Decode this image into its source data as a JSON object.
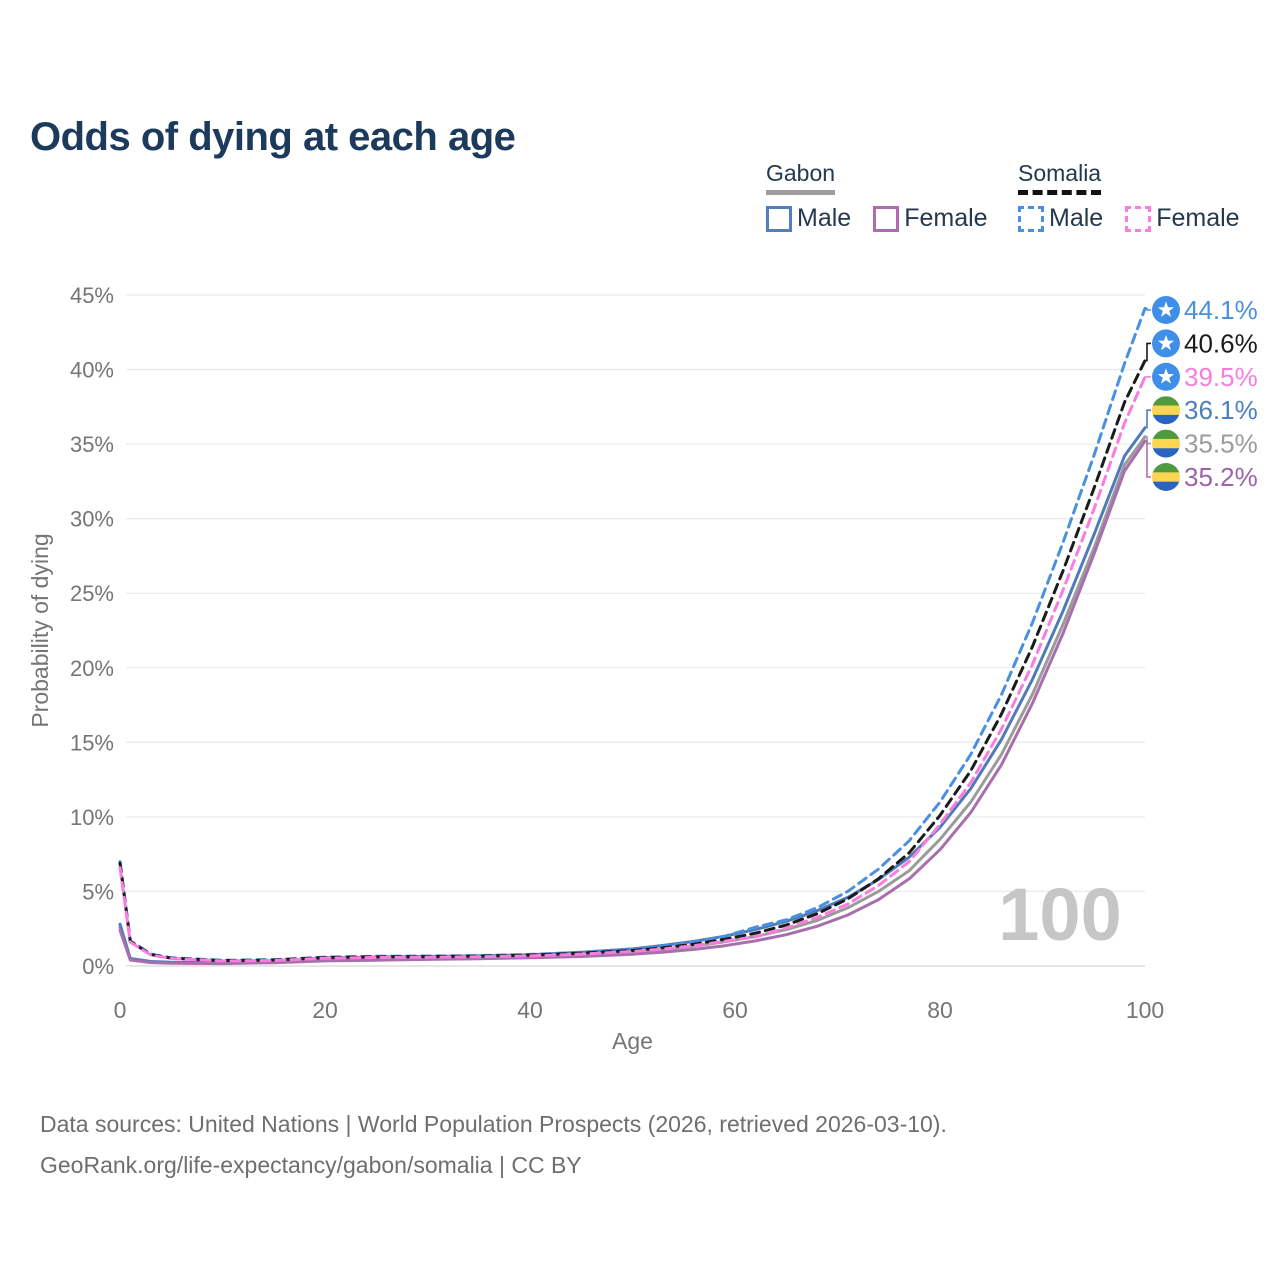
{
  "title": "Odds of dying at each age",
  "legend": {
    "groups": [
      {
        "country": "Gabon",
        "line_style": "solid",
        "underline_color": "#9e9e9e",
        "items": [
          {
            "label": "Male",
            "color": "#5280bd",
            "style": "solid"
          },
          {
            "label": "Female",
            "color": "#b06aad",
            "style": "solid"
          }
        ]
      },
      {
        "country": "Somalia",
        "line_style": "dashed",
        "underline_color": "#111111",
        "items": [
          {
            "label": "Male",
            "color": "#4a90e2",
            "style": "dashed"
          },
          {
            "label": "Female",
            "color": "#fb7de2",
            "style": "dashed"
          }
        ]
      }
    ]
  },
  "chart_data": {
    "type": "line",
    "title": "Odds of dying at each age",
    "xlabel": "Age",
    "ylabel": "Probability of dying",
    "xlim": [
      0,
      100
    ],
    "ylim": [
      0,
      45
    ],
    "grid": "horizontal-only",
    "watermark": "100",
    "xticks": [
      {
        "value": 0,
        "label": "0"
      },
      {
        "value": 20,
        "label": "20"
      },
      {
        "value": 40,
        "label": "40"
      },
      {
        "value": 60,
        "label": "60"
      },
      {
        "value": 80,
        "label": "80"
      },
      {
        "value": 100,
        "label": "100"
      }
    ],
    "yticks": [
      {
        "value": 0,
        "label": "0%"
      },
      {
        "value": 5,
        "label": "5%"
      },
      {
        "value": 10,
        "label": "10%"
      },
      {
        "value": 15,
        "label": "15%"
      },
      {
        "value": 20,
        "label": "20%"
      },
      {
        "value": 25,
        "label": "25%"
      },
      {
        "value": 30,
        "label": "30%"
      },
      {
        "value": 35,
        "label": "35%"
      },
      {
        "value": 40,
        "label": "40%"
      },
      {
        "value": 45,
        "label": "45%"
      }
    ],
    "series": [
      {
        "id": "gabon-both",
        "name": "Gabon — Both sexes",
        "country": "Gabon",
        "sex": "Both",
        "color": "#9b9b9b",
        "dash": false,
        "flag": "gabon",
        "end_label": "35.5%",
        "end_value": 35.5,
        "label_color": "#9b9b9b",
        "points": [
          [
            0,
            2.6
          ],
          [
            1,
            0.46
          ],
          [
            3,
            0.27
          ],
          [
            5,
            0.22
          ],
          [
            10,
            0.19
          ],
          [
            15,
            0.28
          ],
          [
            20,
            0.43
          ],
          [
            25,
            0.49
          ],
          [
            30,
            0.54
          ],
          [
            35,
            0.6
          ],
          [
            40,
            0.66
          ],
          [
            45,
            0.78
          ],
          [
            50,
            0.96
          ],
          [
            53,
            1.12
          ],
          [
            56,
            1.33
          ],
          [
            59,
            1.62
          ],
          [
            62,
            1.98
          ],
          [
            65,
            2.45
          ],
          [
            68,
            3.05
          ],
          [
            71,
            3.9
          ],
          [
            74,
            5.0
          ],
          [
            77,
            6.4
          ],
          [
            80,
            8.5
          ],
          [
            83,
            11.0
          ],
          [
            86,
            14.2
          ],
          [
            89,
            18.2
          ],
          [
            92,
            22.9
          ],
          [
            95,
            28.0
          ],
          [
            98,
            33.6
          ],
          [
            100,
            35.5
          ]
        ]
      },
      {
        "id": "gabon-male",
        "name": "Gabon — Male",
        "country": "Gabon",
        "sex": "Male",
        "color": "#4f7cb8",
        "dash": false,
        "flag": "gabon",
        "end_label": "36.1%",
        "end_value": 36.1,
        "label_color": "#4a7fc1",
        "points": [
          [
            0,
            2.8
          ],
          [
            1,
            0.5
          ],
          [
            3,
            0.3
          ],
          [
            5,
            0.25
          ],
          [
            10,
            0.22
          ],
          [
            15,
            0.32
          ],
          [
            20,
            0.55
          ],
          [
            25,
            0.6
          ],
          [
            30,
            0.64
          ],
          [
            35,
            0.68
          ],
          [
            40,
            0.76
          ],
          [
            45,
            0.92
          ],
          [
            50,
            1.15
          ],
          [
            53,
            1.38
          ],
          [
            56,
            1.65
          ],
          [
            59,
            2.0
          ],
          [
            62,
            2.45
          ],
          [
            65,
            3.0
          ],
          [
            68,
            3.7
          ],
          [
            71,
            4.6
          ],
          [
            74,
            5.8
          ],
          [
            77,
            7.3
          ],
          [
            80,
            9.3
          ],
          [
            83,
            11.9
          ],
          [
            86,
            15.2
          ],
          [
            89,
            19.2
          ],
          [
            92,
            23.8
          ],
          [
            95,
            28.9
          ],
          [
            98,
            34.2
          ],
          [
            100,
            36.1
          ]
        ]
      },
      {
        "id": "gabon-female",
        "name": "Gabon — Female",
        "country": "Gabon",
        "sex": "Female",
        "color": "#a86fad",
        "dash": false,
        "flag": "gabon",
        "end_label": "35.2%",
        "end_value": 35.2,
        "label_color": "#9b64a8",
        "points": [
          [
            0,
            2.4
          ],
          [
            1,
            0.4
          ],
          [
            3,
            0.23
          ],
          [
            5,
            0.19
          ],
          [
            10,
            0.16
          ],
          [
            15,
            0.22
          ],
          [
            20,
            0.34
          ],
          [
            25,
            0.39
          ],
          [
            30,
            0.44
          ],
          [
            35,
            0.49
          ],
          [
            40,
            0.55
          ],
          [
            45,
            0.64
          ],
          [
            50,
            0.79
          ],
          [
            53,
            0.93
          ],
          [
            56,
            1.11
          ],
          [
            59,
            1.36
          ],
          [
            62,
            1.68
          ],
          [
            65,
            2.1
          ],
          [
            68,
            2.66
          ],
          [
            71,
            3.42
          ],
          [
            74,
            4.45
          ],
          [
            77,
            5.85
          ],
          [
            80,
            7.8
          ],
          [
            83,
            10.3
          ],
          [
            86,
            13.5
          ],
          [
            89,
            17.6
          ],
          [
            92,
            22.3
          ],
          [
            95,
            27.6
          ],
          [
            98,
            33.2
          ],
          [
            100,
            35.2
          ]
        ]
      },
      {
        "id": "somalia-male",
        "name": "Somalia — Male",
        "country": "Somalia",
        "sex": "Male",
        "color": "#4a90e2",
        "dash": true,
        "flag": "somalia",
        "end_label": "44.1%",
        "end_value": 44.1,
        "label_color": "#4a90e2",
        "points": [
          [
            0,
            7.0
          ],
          [
            1,
            1.7
          ],
          [
            3,
            0.8
          ],
          [
            5,
            0.55
          ],
          [
            10,
            0.38
          ],
          [
            15,
            0.42
          ],
          [
            20,
            0.6
          ],
          [
            25,
            0.65
          ],
          [
            30,
            0.67
          ],
          [
            35,
            0.7
          ],
          [
            40,
            0.78
          ],
          [
            45,
            0.92
          ],
          [
            50,
            1.12
          ],
          [
            53,
            1.32
          ],
          [
            56,
            1.6
          ],
          [
            59,
            2.0
          ],
          [
            62,
            2.6
          ],
          [
            65,
            3.1
          ],
          [
            68,
            3.9
          ],
          [
            71,
            5.0
          ],
          [
            74,
            6.5
          ],
          [
            77,
            8.4
          ],
          [
            80,
            11.0
          ],
          [
            83,
            14.2
          ],
          [
            86,
            18.2
          ],
          [
            89,
            23.0
          ],
          [
            92,
            28.4
          ],
          [
            95,
            34.2
          ],
          [
            98,
            40.4
          ],
          [
            100,
            44.1
          ]
        ]
      },
      {
        "id": "somalia-both",
        "name": "Somalia — Both sexes",
        "country": "Somalia",
        "sex": "Both",
        "color": "#1b1b1b",
        "dash": true,
        "flag": "somalia",
        "end_label": "40.6%",
        "end_value": 40.6,
        "label_color": "#1b1b1b",
        "points": [
          [
            0,
            6.9
          ],
          [
            1,
            1.65
          ],
          [
            3,
            0.77
          ],
          [
            5,
            0.52
          ],
          [
            10,
            0.36
          ],
          [
            15,
            0.4
          ],
          [
            20,
            0.56
          ],
          [
            25,
            0.61
          ],
          [
            30,
            0.63
          ],
          [
            35,
            0.66
          ],
          [
            40,
            0.73
          ],
          [
            45,
            0.86
          ],
          [
            50,
            1.04
          ],
          [
            53,
            1.22
          ],
          [
            56,
            1.46
          ],
          [
            59,
            1.8
          ],
          [
            62,
            2.2
          ],
          [
            65,
            2.75
          ],
          [
            68,
            3.5
          ],
          [
            71,
            4.5
          ],
          [
            74,
            5.85
          ],
          [
            77,
            7.6
          ],
          [
            80,
            10.1
          ],
          [
            83,
            13.1
          ],
          [
            86,
            16.9
          ],
          [
            89,
            21.4
          ],
          [
            92,
            26.5
          ],
          [
            95,
            32.0
          ],
          [
            98,
            37.8
          ],
          [
            100,
            40.6
          ]
        ]
      },
      {
        "id": "somalia-female",
        "name": "Somalia — Female",
        "country": "Somalia",
        "sex": "Female",
        "color": "#f97de0",
        "dash": true,
        "flag": "somalia",
        "end_label": "39.5%",
        "end_value": 39.5,
        "label_color": "#f97de0",
        "points": [
          [
            0,
            6.6
          ],
          [
            1,
            1.6
          ],
          [
            3,
            0.74
          ],
          [
            5,
            0.5
          ],
          [
            10,
            0.34
          ],
          [
            15,
            0.37
          ],
          [
            20,
            0.52
          ],
          [
            25,
            0.57
          ],
          [
            30,
            0.59
          ],
          [
            35,
            0.62
          ],
          [
            40,
            0.68
          ],
          [
            45,
            0.8
          ],
          [
            50,
            0.97
          ],
          [
            53,
            1.14
          ],
          [
            56,
            1.36
          ],
          [
            59,
            1.66
          ],
          [
            62,
            1.95
          ],
          [
            65,
            2.55
          ],
          [
            68,
            3.25
          ],
          [
            71,
            4.15
          ],
          [
            74,
            5.4
          ],
          [
            77,
            7.0
          ],
          [
            80,
            9.5
          ],
          [
            83,
            12.3
          ],
          [
            86,
            15.9
          ],
          [
            89,
            20.2
          ],
          [
            92,
            25.2
          ],
          [
            95,
            30.6
          ],
          [
            98,
            36.4
          ],
          [
            100,
            39.5
          ]
        ]
      }
    ],
    "flags": {
      "somalia": {
        "type": "star",
        "bg": "#3f8ee8",
        "star": "#ffffff"
      },
      "gabon": {
        "type": "stripes",
        "stripes": [
          "#4f9a3e",
          "#fcd551",
          "#2a63c0"
        ]
      }
    }
  },
  "footer": {
    "line1": "Data sources: United Nations | World Population Prospects (2026, retrieved 2026-03-10).",
    "line2": "GeoRank.org/life-expectancy/gabon/somalia | CC BY"
  }
}
